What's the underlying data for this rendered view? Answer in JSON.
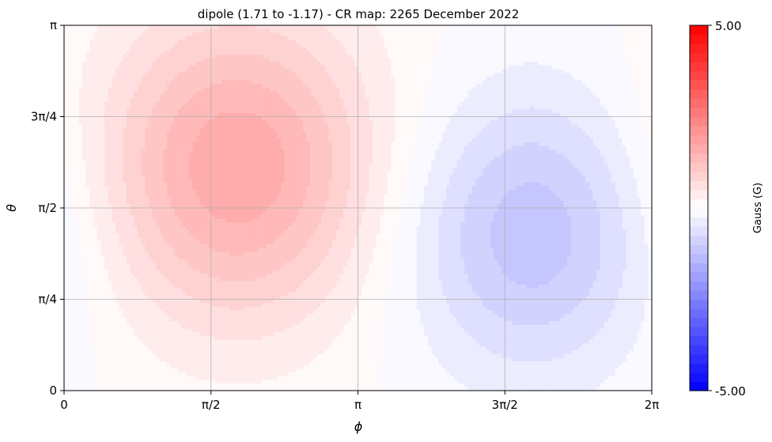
{
  "chart_data": {
    "type": "heatmap",
    "title": "dipole (1.71 to -1.17) - CR map: 2265 December 2022",
    "xlabel": "ϕ",
    "ylabel": "θ",
    "xlim": [
      0,
      6.2832
    ],
    "ylim": [
      0,
      3.1416
    ],
    "x_ticks": [
      {
        "value": 0,
        "label": "0"
      },
      {
        "value": 1.5708,
        "label": "π/2"
      },
      {
        "value": 3.1416,
        "label": "π"
      },
      {
        "value": 4.7124,
        "label": "3π/2"
      },
      {
        "value": 6.2832,
        "label": "2π"
      }
    ],
    "y_ticks": [
      {
        "value": 0,
        "label": "0"
      },
      {
        "value": 0.7854,
        "label": "π/4"
      },
      {
        "value": 1.5708,
        "label": "π/2"
      },
      {
        "value": 2.3562,
        "label": "3π/4"
      },
      {
        "value": 3.1416,
        "label": "π"
      }
    ],
    "grid": true,
    "field": {
      "max_value": 1.71,
      "min_value": -1.17,
      "max_location": {
        "phi": 1.85,
        "theta": 1.92
      },
      "min_location": {
        "phi": 5.0,
        "theta": 1.35
      }
    },
    "colorbar": {
      "label": "Gauss (G)",
      "min": -5.0,
      "max": 5.0,
      "min_label": "-5.00",
      "max_label": "5.00",
      "colormap": "bwr",
      "color_min": "#0000ff",
      "color_mid": "#ffffff",
      "color_max": "#ff0000",
      "levels": 40
    }
  }
}
